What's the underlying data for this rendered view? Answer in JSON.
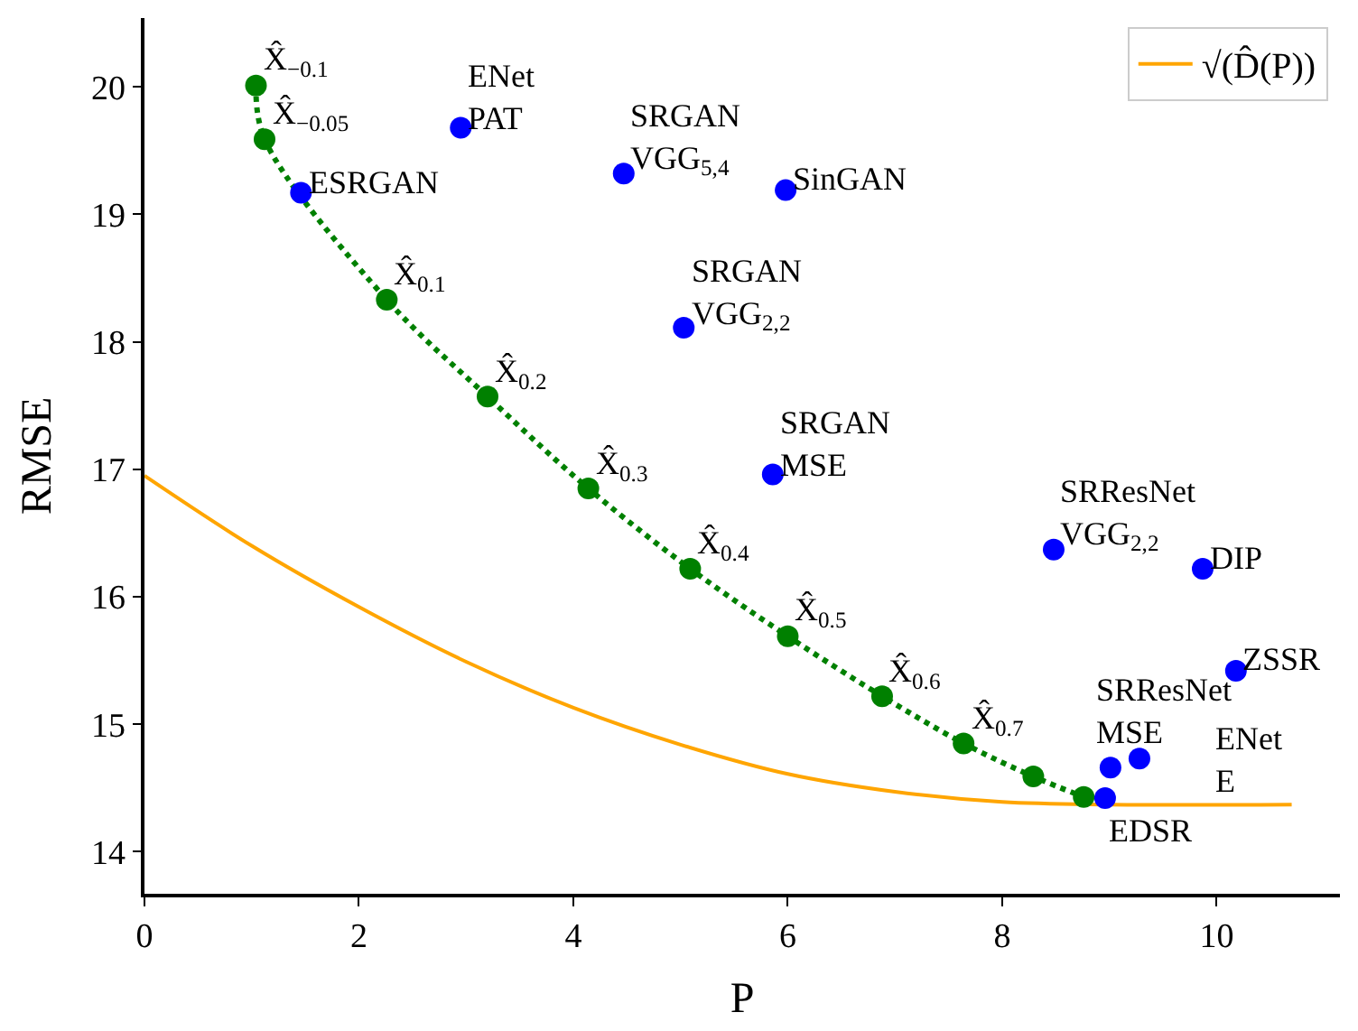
{
  "chart_data": {
    "type": "scatter",
    "xlabel": "P",
    "ylabel": "RMSE",
    "xlim": [
      0,
      11.15
    ],
    "ylim": [
      13.67,
      20.54
    ],
    "xticks": [
      0,
      2,
      4,
      6,
      8,
      10
    ],
    "yticks": [
      14,
      15,
      16,
      17,
      18,
      19,
      20
    ],
    "legend": "top right",
    "series": [
      {
        "type": "line",
        "color": "#ffa500",
        "name": "√(D̂(P))",
        "marker": "none",
        "line_style": "solid",
        "x": [
          0,
          1,
          2,
          3,
          4,
          5,
          6,
          7,
          8,
          9,
          10.7
        ],
        "values": [
          16.95,
          16.4,
          15.92,
          15.49,
          15.13,
          14.84,
          14.61,
          14.47,
          14.39,
          14.37,
          14.37
        ]
      },
      {
        "type": "line",
        "color": "#008000",
        "marker": "circle",
        "line_style": "dotted",
        "x": [
          1.04,
          1.12,
          2.26,
          3.2,
          4.14,
          5.09,
          6.0,
          6.88,
          7.64,
          8.29,
          8.76
        ],
        "values": [
          20.01,
          19.59,
          18.33,
          17.57,
          16.85,
          16.22,
          15.69,
          15.22,
          14.85,
          14.59,
          14.43
        ]
      },
      {
        "color": "#0000ff",
        "marker": "circle",
        "x": [
          1.46,
          2.95,
          4.47,
          5.98,
          5.03,
          5.86,
          8.48,
          9.87,
          10.18,
          9.01,
          9.28,
          8.96
        ],
        "values": [
          19.17,
          19.68,
          19.32,
          19.19,
          18.11,
          16.96,
          16.37,
          16.22,
          15.42,
          14.66,
          14.73,
          14.42
        ]
      }
    ],
    "annotations": [
      {
        "text": "X̂$_{−0.1}$",
        "x": 1.04,
        "y": 20.01
      },
      {
        "text": "X̂$_{−0.05}$",
        "x": 1.12,
        "y": 19.59
      },
      {
        "text": "X̂$_{0.1}$",
        "x": 2.26,
        "y": 18.33
      },
      {
        "text": "X̂$_{0.2}$",
        "x": 3.2,
        "y": 17.57
      },
      {
        "text": "X̂$_{0.3}$",
        "x": 4.14,
        "y": 16.85
      },
      {
        "text": "X̂$_{0.4}$",
        "x": 5.09,
        "y": 16.22
      },
      {
        "text": "X̂$_{0.5}$",
        "x": 6.0,
        "y": 15.69
      },
      {
        "text": "X̂$_{0.6}$",
        "x": 6.88,
        "y": 15.22
      },
      {
        "text": "X̂$_{0.7}$",
        "x": 7.64,
        "y": 14.85
      },
      {
        "text": "ESRGAN",
        "x": 1.46,
        "y": 19.17
      },
      {
        "text": "ENet\nPAT",
        "x": 2.95,
        "y": 19.68
      },
      {
        "text": "SRGAN\nVGG$_{5,4}$",
        "x": 4.47,
        "y": 19.32
      },
      {
        "text": "SinGAN",
        "x": 5.98,
        "y": 19.19
      },
      {
        "text": "SRGAN\nVGG$_{2,2}$",
        "x": 5.03,
        "y": 18.11
      },
      {
        "text": "SRGAN\nMSE",
        "x": 5.86,
        "y": 16.96
      },
      {
        "text": "SRResNet\nVGG$_{2,2}$",
        "x": 8.48,
        "y": 16.37
      },
      {
        "text": "DIP",
        "x": 9.87,
        "y": 16.22
      },
      {
        "text": "ZSSR",
        "x": 10.18,
        "y": 15.42
      },
      {
        "text": "SRResNet\nMSE",
        "x": 9.01,
        "y": 14.66
      },
      {
        "text": "ENet\nE",
        "x": 9.28,
        "y": 14.73
      },
      {
        "text": "EDSR",
        "x": 8.96,
        "y": 14.42
      }
    ]
  }
}
